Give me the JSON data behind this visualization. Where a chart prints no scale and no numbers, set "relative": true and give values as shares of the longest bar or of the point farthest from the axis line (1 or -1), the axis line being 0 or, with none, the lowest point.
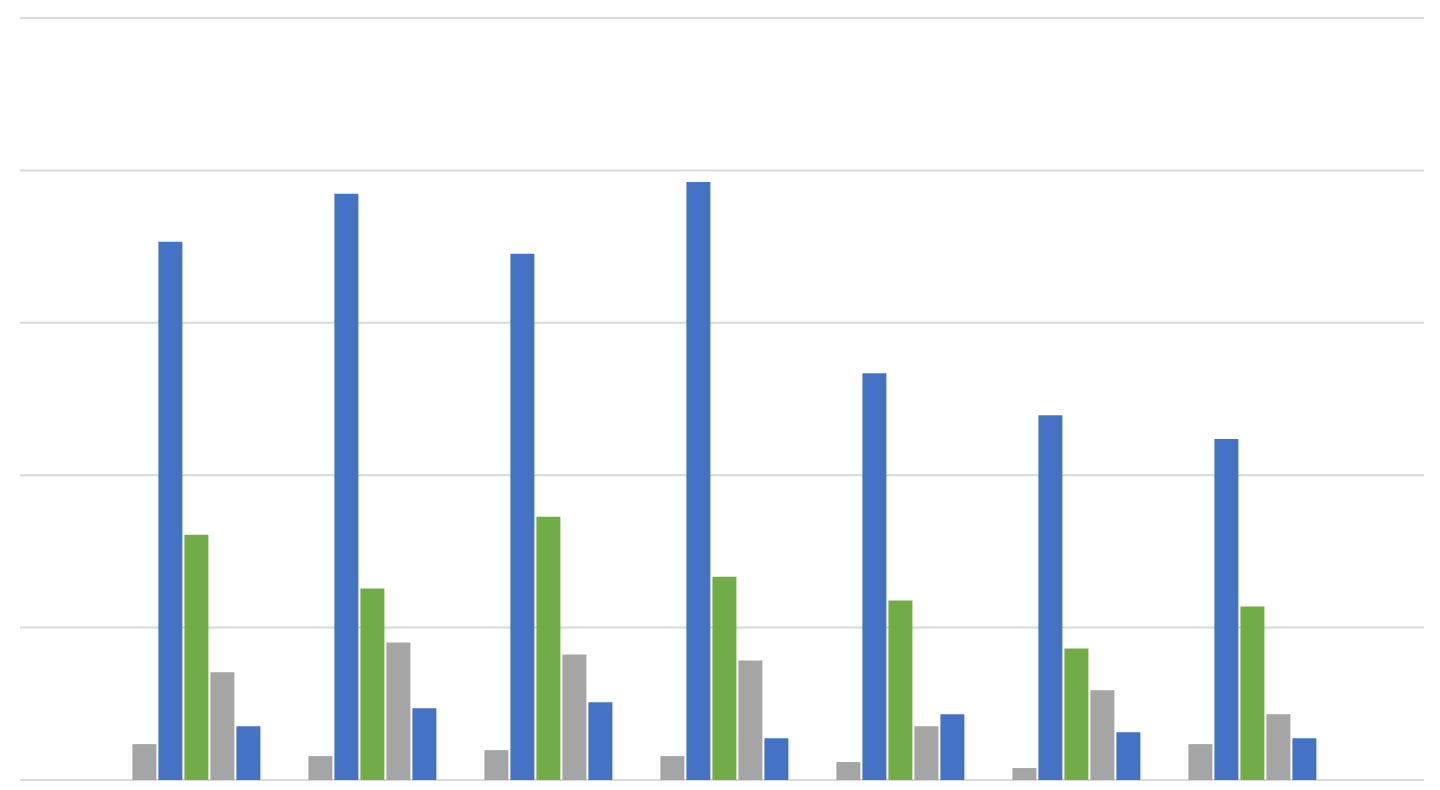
{
  "chart_data": {
    "type": "bar",
    "relative": true,
    "grid": "y",
    "legend": false,
    "categories": [
      null,
      null,
      null,
      null,
      null,
      null,
      null
    ],
    "series": [
      {
        "color": "#a5a5a5",
        "values": [
          0.06,
          0.04,
          0.05,
          0.04,
          0.03,
          0.02,
          0.06
        ]
      },
      {
        "color": "#4472c4",
        "values": [
          0.9,
          0.98,
          0.88,
          1,
          0.68,
          0.61,
          0.57
        ]
      },
      {
        "color": "#70ad47",
        "values": [
          0.41,
          0.32,
          0.44,
          0.34,
          0.3,
          0.22,
          0.29
        ]
      },
      {
        "color": "#a5a5a5",
        "values": [
          0.18,
          0.23,
          0.21,
          0.2,
          0.09,
          0.15,
          0.11
        ]
      },
      {
        "color": "#4472c4",
        "values": [
          0.09,
          0.12,
          0.13,
          0.07,
          0.11,
          0.08,
          0.07
        ]
      }
    ]
  }
}
